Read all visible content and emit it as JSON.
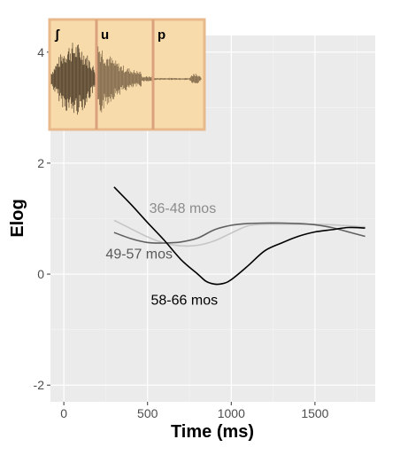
{
  "chart_data": {
    "type": "line",
    "xlabel": "Time (ms)",
    "ylabel": "Elog",
    "xlim": [
      -80,
      1860
    ],
    "ylim": [
      -2.3,
      4.3
    ],
    "x_ticks": [
      0,
      500,
      1000,
      1500
    ],
    "y_ticks": [
      -2,
      0,
      2,
      4
    ],
    "x_tick_labels": [
      "0",
      "500",
      "1000",
      "1500"
    ],
    "y_tick_labels": [
      "-2",
      "0",
      "2",
      "4"
    ],
    "grid": true,
    "legend": "none",
    "background": "#ebebeb",
    "series": [
      {
        "name": "36-48 mos",
        "color": "#c6c6c6",
        "x": [
          300,
          400,
          500,
          600,
          700,
          800,
          900,
          1000,
          1100,
          1200,
          1300,
          1400,
          1500,
          1600,
          1700,
          1800
        ],
        "y": [
          0.97,
          0.82,
          0.67,
          0.56,
          0.51,
          0.52,
          0.6,
          0.74,
          0.87,
          0.9,
          0.9,
          0.9,
          0.9,
          0.89,
          0.87,
          0.85
        ]
      },
      {
        "name": "49-57 mos",
        "color": "#606060",
        "x": [
          300,
          400,
          500,
          600,
          700,
          800,
          900,
          1000,
          1100,
          1200,
          1300,
          1400,
          1500,
          1600,
          1700,
          1800
        ],
        "y": [
          0.75,
          0.64,
          0.57,
          0.56,
          0.58,
          0.65,
          0.8,
          0.88,
          0.91,
          0.92,
          0.92,
          0.91,
          0.89,
          0.84,
          0.76,
          0.68
        ]
      },
      {
        "name": "58-66 mos",
        "color": "#000000",
        "x": [
          300,
          400,
          500,
          600,
          700,
          800,
          850,
          900,
          950,
          1000,
          1100,
          1200,
          1300,
          1400,
          1500,
          1600,
          1700,
          1800
        ],
        "y": [
          1.57,
          1.26,
          0.93,
          0.61,
          0.26,
          0.0,
          -0.13,
          -0.18,
          -0.17,
          -0.1,
          0.15,
          0.42,
          0.56,
          0.68,
          0.76,
          0.8,
          0.84,
          0.83
        ]
      }
    ],
    "annotations": [
      {
        "text": "36-48 mos",
        "color": "#8c8c8c",
        "x": 510,
        "y": 1.1
      },
      {
        "text": "49-57 mos",
        "color": "#5a5a5a",
        "x": 250,
        "y": 0.28
      },
      {
        "text": "58-66 mos",
        "color": "#000000",
        "x": 520,
        "y": -0.55
      }
    ]
  },
  "inset": {
    "phones": [
      "ʃ",
      "u",
      "p"
    ],
    "background_color": "#f8dbaa",
    "border_color": "#e8b98a",
    "divider_color": "#dca27d"
  }
}
